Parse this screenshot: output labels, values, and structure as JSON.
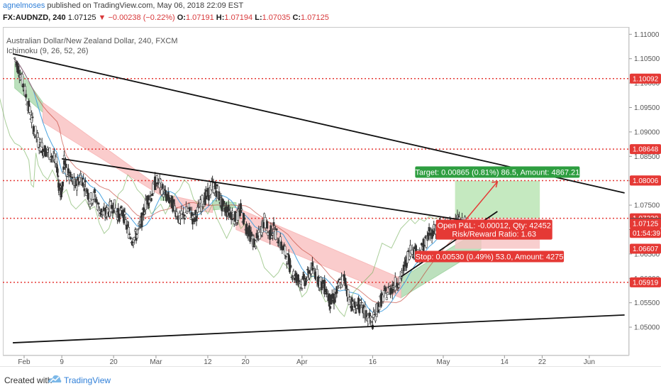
{
  "header": {
    "user": "agnelmoses",
    "published": "published on TradingView.com, May 06, 2018 22:09 EST",
    "symbol": "FX:AUDNZD, 240",
    "last": "1.07125",
    "change": "−0.00238 (−0.22%)",
    "o_label": "O:",
    "o": "1.07191",
    "h_label": "H:",
    "h": "1.07194",
    "l_label": "L:",
    "l": "1.07035",
    "c_label": "C:",
    "c": "1.07125"
  },
  "chart": {
    "title": "Australian Dollar/New Zealand Dollar, 240, FXCM",
    "indicator": "Ichimoku (9, 26, 52, 26)"
  },
  "footer": {
    "created_with": "Created with",
    "brand": "TradingView"
  },
  "colors": {
    "up": "#26a69a",
    "down": "#ef5350",
    "candle": "#333333",
    "level_line": "#e53935",
    "label_red": "#e53935",
    "cloud_green": "#a5d6a7",
    "cloud_red": "#f8bbbb",
    "target_zone": "#b7e4b0",
    "stop_zone": "#f6c2c2",
    "target_label": "#2e9e40",
    "trend": "#111111",
    "price_tag": "#555555"
  },
  "chart_data": {
    "type": "candlestick",
    "title": "Australian Dollar/New Zealand Dollar, 240, FXCM",
    "ylim": [
      1.0455,
      1.1115
    ],
    "yticks": [
      "1.11000",
      "1.10500",
      "1.10000",
      "1.09500",
      "1.09000",
      "1.08500",
      "1.08000",
      "1.07500",
      "1.07000",
      "1.06500",
      "1.06000",
      "1.05500",
      "1.05000"
    ],
    "xticks": [
      "Feb",
      "9",
      "20",
      "Mar",
      "12",
      "20",
      "Apr",
      "16",
      "May",
      "14",
      "22",
      "Jun"
    ],
    "price_levels": [
      {
        "value": "1.10092",
        "price": 1.10092
      },
      {
        "value": "1.08648",
        "price": 1.08648
      },
      {
        "value": "1.08002",
        "price": 1.08002
      },
      {
        "value": "1.07230",
        "price": 1.0723
      },
      {
        "value": "1.05919",
        "price": 1.05919
      }
    ],
    "price_tags": [
      {
        "value": "1.08006",
        "price": 1.08006,
        "style": "red"
      },
      {
        "value": "1.07137",
        "price": 1.07137,
        "style": "gray"
      },
      {
        "value": "1.07125",
        "price": 1.07125,
        "style": "red"
      },
      {
        "value": "01:54:39",
        "price": 1.0693,
        "style": "red"
      },
      {
        "value": "1.06607",
        "price": 1.06607,
        "style": "red"
      }
    ],
    "position": {
      "entry": 1.0723,
      "target": 1.08002,
      "stop": 1.06607,
      "target_text": "Target: 0.00865 (0.81%) 86.5, Amount: 4867.21",
      "pnl_text": "Open P&L: -0.00012, Qty: 42452",
      "rr_text": "Risk/Reward Ratio: 1.63",
      "stop_text": "Stop: 0.00530 (0.49%) 53.0, Amount: 4275"
    },
    "trendlines": [
      {
        "x1_day": -2.4,
        "y1": 1.106,
        "x2_day": 127.5,
        "y2": 1.0775
      },
      {
        "x1_day": 8.0,
        "y1": 1.0845,
        "x2_day": 94.0,
        "y2": 1.0718
      },
      {
        "x1_day": -2.4,
        "y1": 1.0468,
        "x2_day": 127.5,
        "y2": 1.0525
      },
      {
        "x1_day": 80.0,
        "y1": 1.0603,
        "x2_day": 100.5,
        "y2": 1.0737
      }
    ],
    "price_path": [
      [
        -2.0,
        1.105
      ],
      [
        -1.0,
        1.1025
      ],
      [
        0.0,
        1.099
      ],
      [
        1.0,
        1.095
      ],
      [
        2.0,
        1.091
      ],
      [
        3.0,
        1.088
      ],
      [
        4.0,
        1.0865
      ],
      [
        5.0,
        1.086
      ],
      [
        6.0,
        1.085
      ],
      [
        7.0,
        1.083
      ],
      [
        7.5,
        1.078
      ],
      [
        8.0,
        1.0775
      ],
      [
        8.5,
        1.0845
      ],
      [
        9.0,
        1.082
      ],
      [
        10.0,
        1.08
      ],
      [
        11.0,
        1.079
      ],
      [
        12.0,
        1.081
      ],
      [
        13.0,
        1.079
      ],
      [
        14.0,
        1.076
      ],
      [
        15.0,
        1.077
      ],
      [
        16.0,
        1.074
      ],
      [
        17.0,
        1.073
      ],
      [
        18.0,
        1.074
      ],
      [
        19.0,
        1.075
      ],
      [
        20.0,
        1.073
      ],
      [
        21.0,
        1.0735
      ],
      [
        22.0,
        1.07
      ],
      [
        23.0,
        1.068
      ],
      [
        24.0,
        1.069
      ],
      [
        25.0,
        1.072
      ],
      [
        26.0,
        1.076
      ],
      [
        27.0,
        1.077
      ],
      [
        28.0,
        1.08
      ],
      [
        29.0,
        1.079
      ],
      [
        30.0,
        1.077
      ],
      [
        31.0,
        1.076
      ],
      [
        32.0,
        1.0745
      ],
      [
        33.0,
        1.072
      ],
      [
        34.0,
        1.073
      ],
      [
        35.0,
        1.074
      ],
      [
        36.0,
        1.072
      ],
      [
        37.0,
        1.074
      ],
      [
        38.0,
        1.076
      ],
      [
        39.0,
        1.077
      ],
      [
        40.0,
        1.079
      ],
      [
        41.0,
        1.078
      ],
      [
        42.0,
        1.075
      ],
      [
        43.0,
        1.074
      ],
      [
        44.0,
        1.0735
      ],
      [
        45.0,
        1.072
      ],
      [
        46.0,
        1.074
      ],
      [
        47.0,
        1.071
      ],
      [
        48.0,
        1.069
      ],
      [
        49.0,
        1.067
      ],
      [
        50.0,
        1.069
      ],
      [
        51.0,
        1.072
      ],
      [
        52.0,
        1.069
      ],
      [
        53.0,
        1.07
      ],
      [
        54.0,
        1.068
      ],
      [
        55.0,
        1.066
      ],
      [
        56.0,
        1.064
      ],
      [
        57.0,
        1.061
      ],
      [
        58.0,
        1.06
      ],
      [
        59.0,
        1.059
      ],
      [
        60.0,
        1.06
      ],
      [
        61.0,
        1.062
      ],
      [
        62.0,
        1.061
      ],
      [
        63.0,
        1.059
      ],
      [
        64.0,
        1.058
      ],
      [
        65.0,
        1.055
      ],
      [
        66.0,
        1.056
      ],
      [
        67.0,
        1.059
      ],
      [
        68.0,
        1.06
      ],
      [
        69.0,
        1.056
      ],
      [
        70.0,
        1.054
      ],
      [
        71.0,
        1.0545
      ],
      [
        72.0,
        1.0535
      ],
      [
        73.0,
        1.052
      ],
      [
        74.0,
        1.051
      ],
      [
        75.0,
        1.054
      ],
      [
        76.0,
        1.056
      ],
      [
        77.0,
        1.057
      ],
      [
        78.0,
        1.058
      ],
      [
        79.0,
        1.059
      ],
      [
        80.0,
        1.06
      ],
      [
        81.0,
        1.063
      ],
      [
        82.0,
        1.066
      ],
      [
        83.0,
        1.0655
      ],
      [
        84.0,
        1.065
      ],
      [
        85.0,
        1.067
      ],
      [
        86.0,
        1.069
      ],
      [
        87.0,
        1.07
      ],
      [
        88.0,
        1.071
      ],
      [
        89.0,
        1.07
      ],
      [
        90.0,
        1.071
      ],
      [
        91.0,
        1.0705
      ],
      [
        92.0,
        1.0715
      ],
      [
        93.0,
        1.071
      ],
      [
        94.0,
        1.07125
      ]
    ],
    "cloud_green_segments": [
      {
        "from": -2.0,
        "to": 4.0,
        "upper": [
          1.104,
          1.096
        ],
        "lower": [
          1.099,
          1.094
        ]
      },
      {
        "from": 29.0,
        "to": 31.0,
        "upper": [
          1.077,
          1.0765
        ],
        "lower": [
          1.076,
          1.076
        ]
      },
      {
        "from": 40.0,
        "to": 45.0,
        "upper": [
          1.076,
          1.0755
        ],
        "lower": [
          1.074,
          1.0745
        ]
      },
      {
        "from": 80.0,
        "to": 97.0,
        "upper": [
          1.06,
          1.07
        ],
        "lower": [
          1.056,
          1.066
        ]
      }
    ],
    "cloud_red_segments": [
      {
        "from": 4.0,
        "to": 29.0,
        "upper": [
          1.096,
          1.0785
        ],
        "lower": [
          1.092,
          1.077
        ]
      },
      {
        "from": 31.0,
        "to": 40.0,
        "upper": [
          1.077,
          1.075
        ],
        "lower": [
          1.0745,
          1.0735
        ]
      },
      {
        "from": 45.0,
        "to": 80.0,
        "upper": [
          1.0745,
          1.06
        ],
        "lower": [
          1.07,
          1.056
        ]
      }
    ]
  }
}
